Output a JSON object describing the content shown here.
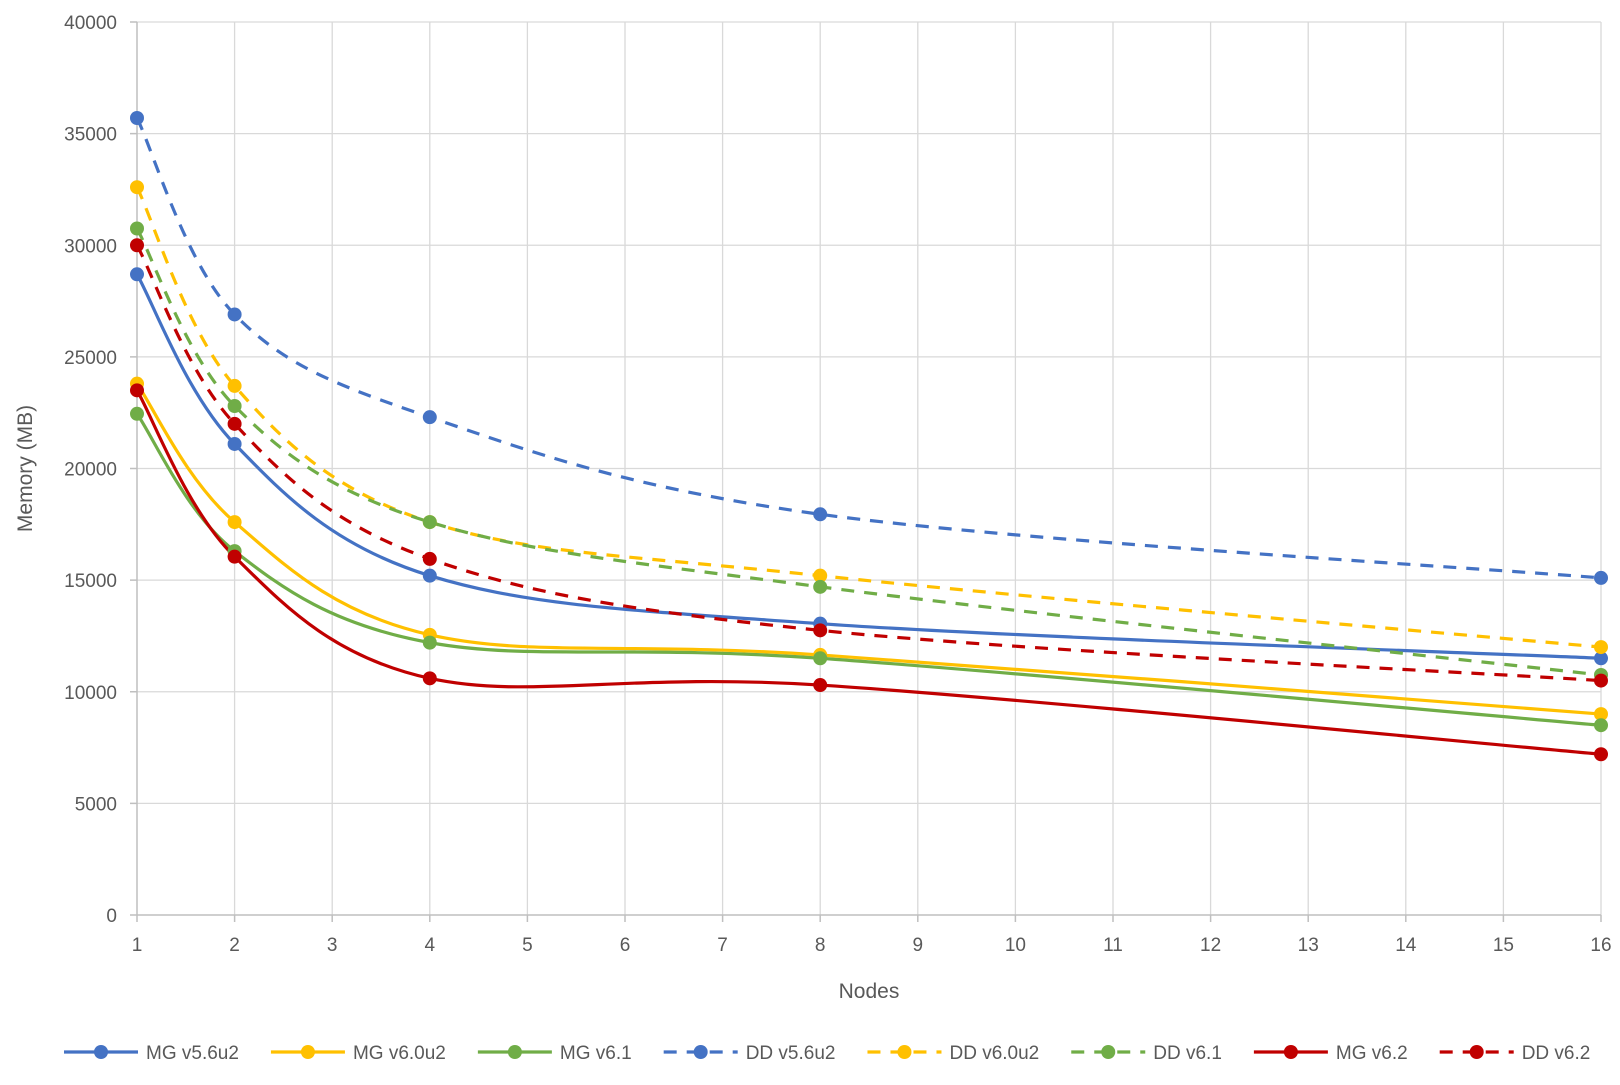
{
  "chart_data": {
    "type": "line",
    "title": "",
    "xlabel": "Nodes",
    "ylabel": "Memory (MB)",
    "xlim": [
      1,
      16
    ],
    "ylim": [
      0,
      40000
    ],
    "x_ticks": [
      1,
      2,
      3,
      4,
      5,
      6,
      7,
      8,
      9,
      10,
      11,
      12,
      13,
      14,
      15,
      16
    ],
    "y_ticks": [
      0,
      5000,
      10000,
      15000,
      20000,
      25000,
      30000,
      35000,
      40000
    ],
    "grid": true,
    "legend_position": "bottom",
    "x": [
      1,
      2,
      4,
      8,
      16
    ],
    "series": [
      {
        "name": "MG v5.6u2",
        "color": "#4472C4",
        "dashed": false,
        "values": [
          28700,
          21100,
          15200,
          13050,
          11500
        ]
      },
      {
        "name": "MG v6.0u2",
        "color": "#FFC000",
        "dashed": false,
        "values": [
          23800,
          17600,
          12550,
          11650,
          9000
        ]
      },
      {
        "name": "MG v6.1",
        "color": "#70AD47",
        "dashed": false,
        "values": [
          22450,
          16300,
          12200,
          11500,
          8500
        ]
      },
      {
        "name": "DD v5.6u2",
        "color": "#4472C4",
        "dashed": true,
        "values": [
          35700,
          26900,
          22300,
          17950,
          15100
        ]
      },
      {
        "name": "DD v6.0u2",
        "color": "#FFC000",
        "dashed": true,
        "values": [
          32600,
          23700,
          17600,
          15200,
          12000
        ]
      },
      {
        "name": "DD v6.1",
        "color": "#70AD47",
        "dashed": true,
        "values": [
          30750,
          22800,
          17600,
          14700,
          10750
        ]
      },
      {
        "name": "MG v6.2",
        "color": "#C00000",
        "dashed": false,
        "values": [
          23500,
          16050,
          10600,
          10300,
          7200
        ]
      },
      {
        "name": "DD v6.2",
        "color": "#C00000",
        "dashed": true,
        "values": [
          30000,
          22000,
          15950,
          12750,
          10500
        ]
      }
    ]
  }
}
